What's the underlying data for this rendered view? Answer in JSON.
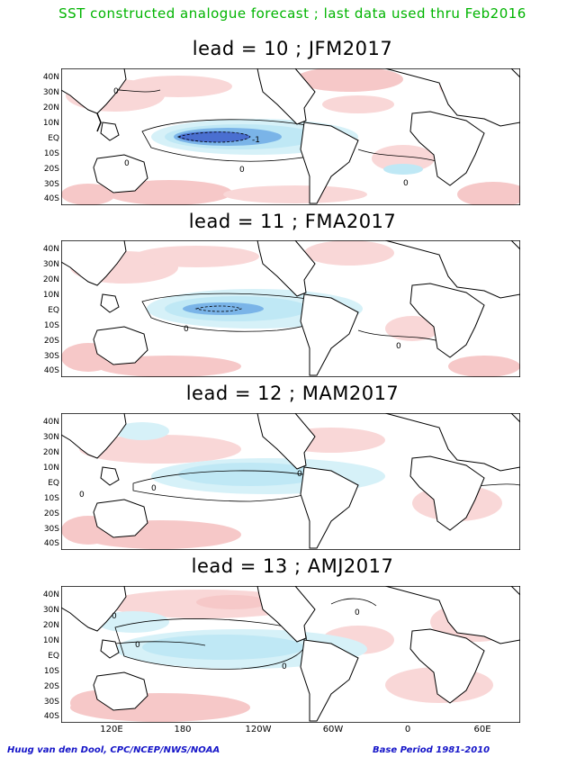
{
  "header": {
    "title": "SST constructed analogue forecast ; last data used thru Feb2016"
  },
  "panels": [
    {
      "title": "lead = 10 ; JFM2017"
    },
    {
      "title": "lead = 11 ; FMA2017"
    },
    {
      "title": "lead = 12 ; MAM2017"
    },
    {
      "title": "lead = 13 ; AMJ2017"
    }
  ],
  "axes": {
    "lat_labels": [
      "40N",
      "30N",
      "20N",
      "10N",
      "EQ",
      "10S",
      "20S",
      "30S",
      "40S"
    ],
    "lon_labels": [
      "120E",
      "180",
      "120W",
      "60W",
      "0",
      "60E"
    ]
  },
  "contour_labels": {
    "zero": "0",
    "neg_one": "-1"
  },
  "footer": {
    "credit": "Huug van den Dool, CPC/NCEP/NWS/NOAA",
    "base_period": "Base Period 1981-2010"
  },
  "colors": {
    "title": "#00b400",
    "footer": "#1414c8",
    "warm": "#f6c8c8",
    "cool": "#bfe8f5",
    "cold": "#7ab4e8",
    "coldest": "#4a6fd0"
  }
}
